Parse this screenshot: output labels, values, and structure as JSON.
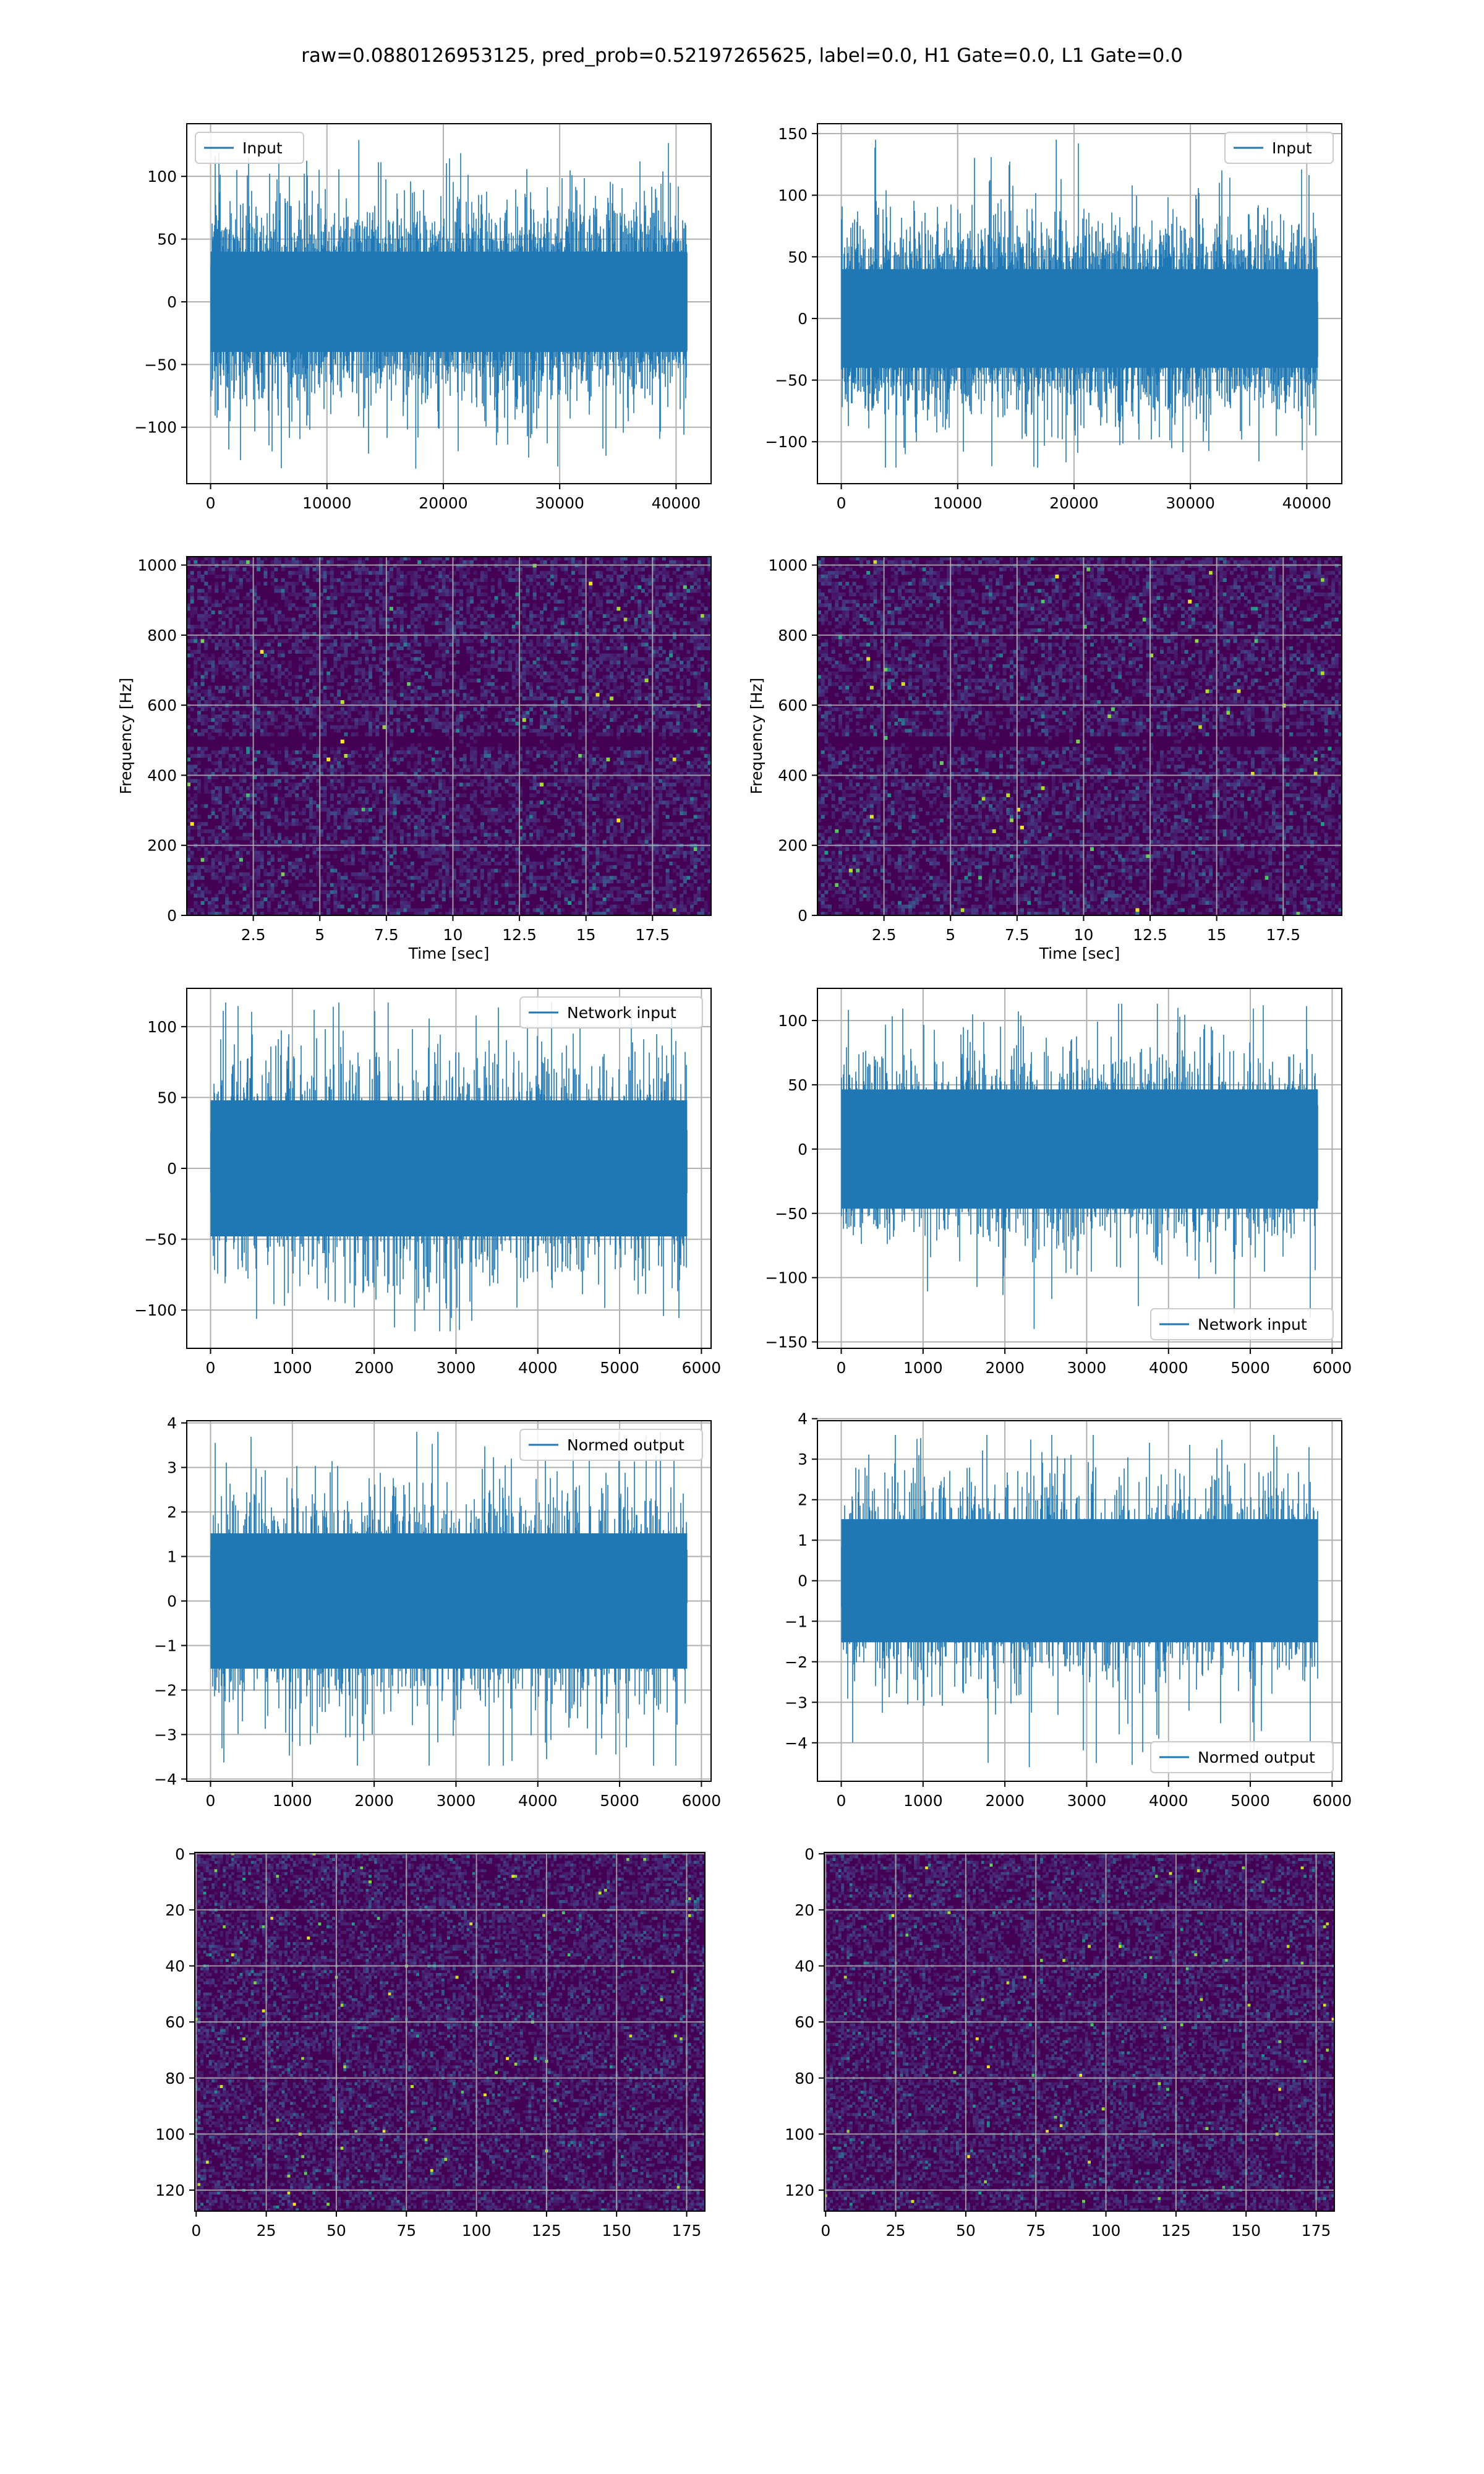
{
  "figure": {
    "title": "raw=0.0880126953125, pred_prob=0.52197265625, label=0.0, H1 Gate=0.0, L1 Gate=0.0"
  },
  "colors": {
    "line": "#1f77b4",
    "grid": "#b0b0b0",
    "axis": "#000000",
    "viridis_dark": "#440154"
  },
  "chart_data": [
    {
      "id": "r1c1",
      "type": "line",
      "legend": [
        "Input"
      ],
      "legend_loc": "upper-left",
      "xlim": [
        -2048,
        43008
      ],
      "ylim": [
        -145,
        142
      ],
      "xticks": [
        0,
        10000,
        20000,
        30000,
        40000
      ],
      "yticks": [
        -100,
        -50,
        0,
        50,
        100
      ],
      "series": [
        {
          "name": "Input",
          "n": 40960,
          "std": 25,
          "min": -133,
          "max": 129
        }
      ],
      "grid": true
    },
    {
      "id": "r1c2",
      "type": "line",
      "legend": [
        "Input"
      ],
      "legend_loc": "upper-right",
      "xlim": [
        -2048,
        43008
      ],
      "ylim": [
        -134,
        158
      ],
      "xticks": [
        0,
        10000,
        20000,
        30000,
        40000
      ],
      "yticks": [
        -100,
        -50,
        0,
        50,
        100,
        150
      ],
      "series": [
        {
          "name": "Input",
          "n": 40960,
          "std": 25,
          "min": -121,
          "max": 145
        }
      ],
      "grid": true
    },
    {
      "id": "r2c1",
      "type": "heatmap",
      "xlabel": "Time [sec]",
      "ylabel": "Frequency [Hz]",
      "xlim": [
        0,
        19.7
      ],
      "ylim": [
        0,
        1024
      ],
      "xticks": [
        2.5,
        5.0,
        7.5,
        10.0,
        12.5,
        15.0,
        17.5
      ],
      "yticks": [
        0,
        200,
        400,
        600,
        800,
        1000
      ],
      "colormap": "viridis",
      "dark_band_hz": [
        485,
        515
      ],
      "grid": true
    },
    {
      "id": "r2c2",
      "type": "heatmap",
      "xlabel": "Time [sec]",
      "ylabel": "Frequency [Hz]",
      "xlim": [
        0,
        19.7
      ],
      "ylim": [
        0,
        1024
      ],
      "xticks": [
        2.5,
        5.0,
        7.5,
        10.0,
        12.5,
        15.0,
        17.5
      ],
      "yticks": [
        0,
        200,
        400,
        600,
        800,
        1000
      ],
      "colormap": "viridis",
      "dark_band_hz": [
        485,
        515
      ],
      "grid": true
    },
    {
      "id": "r3c1",
      "type": "line",
      "legend": [
        "Network input"
      ],
      "legend_loc": "upper-right",
      "xlim": [
        -291,
        6118
      ],
      "ylim": [
        -127,
        127
      ],
      "xticks": [
        0,
        1000,
        2000,
        3000,
        4000,
        5000,
        6000
      ],
      "yticks": [
        -100,
        -50,
        0,
        50,
        100
      ],
      "series": [
        {
          "name": "Network input",
          "n": 5826,
          "std": 30,
          "min": -115,
          "max": 117
        }
      ],
      "grid": true
    },
    {
      "id": "r3c2",
      "type": "line",
      "legend": [
        "Network input"
      ],
      "legend_loc": "lower-right",
      "xlim": [
        -291,
        6118
      ],
      "ylim": [
        -155,
        125
      ],
      "xticks": [
        0,
        1000,
        2000,
        3000,
        4000,
        5000,
        6000
      ],
      "yticks": [
        -150,
        -100,
        -50,
        0,
        50,
        100
      ],
      "series": [
        {
          "name": "Network input",
          "n": 5826,
          "std": 29,
          "min": -140,
          "max": 113
        }
      ],
      "grid": true
    },
    {
      "id": "r4c1",
      "type": "line",
      "legend": [
        "Normed output"
      ],
      "legend_loc": "upper-right",
      "xlim": [
        -291,
        6118
      ],
      "ylim": [
        -4.05,
        4.05
      ],
      "xticks": [
        0,
        1000,
        2000,
        3000,
        4000,
        5000,
        6000
      ],
      "yticks": [
        -4,
        -3,
        -2,
        -1,
        0,
        1,
        2,
        3,
        4
      ],
      "series": [
        {
          "name": "Normed output",
          "n": 5826,
          "std": 0.95,
          "min": -3.7,
          "max": 3.8
        }
      ],
      "grid": true
    },
    {
      "id": "r4c2",
      "type": "line",
      "legend": [
        "Normed output"
      ],
      "legend_loc": "lower-right",
      "xlim": [
        -291,
        6118
      ],
      "ylim": [
        -4.95,
        3.95
      ],
      "xticks": [
        0,
        1000,
        2000,
        3000,
        4000,
        5000,
        6000
      ],
      "yticks": [
        -4,
        -3,
        -2,
        -1,
        0,
        1,
        2,
        3,
        4
      ],
      "series": [
        {
          "name": "Normed output",
          "n": 5826,
          "std": 0.95,
          "min": -4.6,
          "max": 3.6
        }
      ],
      "grid": true
    },
    {
      "id": "r5c1",
      "type": "heatmap",
      "rows": 128,
      "cols": 182,
      "inverted_y": true,
      "xlim": [
        -0.5,
        181.5
      ],
      "ylim": [
        127.5,
        -0.5
      ],
      "xticks": [
        0,
        25,
        50,
        75,
        100,
        125,
        150,
        175
      ],
      "yticks": [
        0,
        20,
        40,
        60,
        80,
        100,
        120
      ],
      "colormap": "viridis",
      "grid": true
    },
    {
      "id": "r5c2",
      "type": "heatmap",
      "rows": 128,
      "cols": 182,
      "inverted_y": true,
      "xlim": [
        -0.5,
        181.5
      ],
      "ylim": [
        127.5,
        -0.5
      ],
      "xticks": [
        0,
        25,
        50,
        75,
        100,
        125,
        150,
        175
      ],
      "yticks": [
        0,
        20,
        40,
        60,
        80,
        100,
        120
      ],
      "colormap": "viridis",
      "grid": true
    }
  ]
}
